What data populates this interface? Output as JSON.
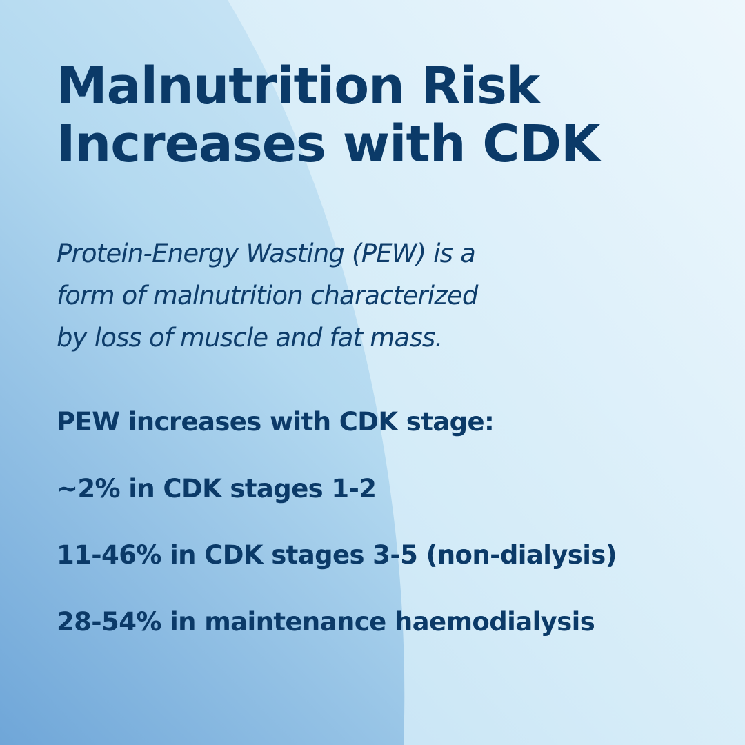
{
  "title": {
    "lines": [
      "Malnutrition Risk",
      "Increases with CDK"
    ]
  },
  "intro": {
    "lines": [
      "Protein-Energy Wasting (PEW) is a",
      "form of malnutrition characterized",
      "by loss of muscle and fat mass."
    ]
  },
  "heading": "PEW increases with CDK stage:",
  "items": [
    "~2% in CDK stages 1-2",
    "11-46% in CDK stages 3-5 (non-dialysis)",
    "28-54% in maintenance haemodialysis"
  ]
}
